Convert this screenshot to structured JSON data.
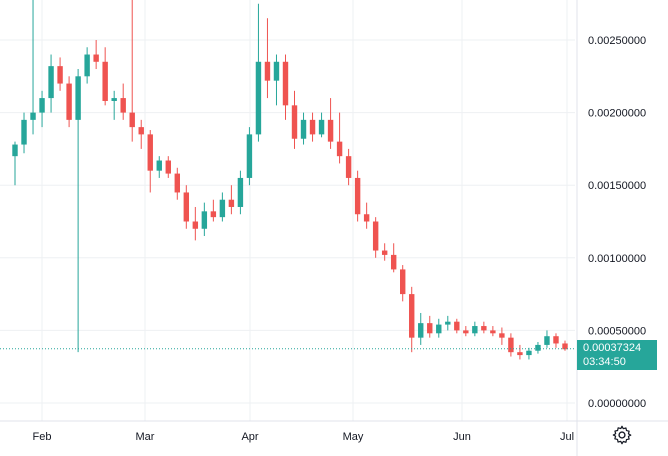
{
  "chart_data": {
    "type": "candlestick",
    "y_ticks": [
      "0.00250000",
      "0.00200000",
      "0.00150000",
      "0.00100000",
      "0.00050000",
      "0.00000000"
    ],
    "y_tick_values": [
      0.0025,
      0.002,
      0.0015,
      0.001,
      0.0005,
      0.0
    ],
    "x_ticks": [
      "Feb",
      "Mar",
      "Apr",
      "May",
      "Jun",
      "Jul"
    ],
    "ylim": [
      -5e-05,
      0.0028
    ],
    "grid": true,
    "last_price": "0.00037324",
    "countdown": "03:34:50",
    "last_price_value": 0.00037324,
    "candles": [
      {
        "o": 0.0017,
        "h": 0.0018,
        "l": 0.0015,
        "c": 0.00178
      },
      {
        "o": 0.00178,
        "h": 0.002,
        "l": 0.00172,
        "c": 0.00195
      },
      {
        "o": 0.00195,
        "h": 0.0028,
        "l": 0.00185,
        "c": 0.002
      },
      {
        "o": 0.002,
        "h": 0.00215,
        "l": 0.0019,
        "c": 0.0021
      },
      {
        "o": 0.0021,
        "h": 0.0024,
        "l": 0.002,
        "c": 0.00232
      },
      {
        "o": 0.00232,
        "h": 0.00238,
        "l": 0.00215,
        "c": 0.0022
      },
      {
        "o": 0.0022,
        "h": 0.00225,
        "l": 0.0019,
        "c": 0.00195
      },
      {
        "o": 0.00195,
        "h": 0.0023,
        "l": 0.00035,
        "c": 0.00225
      },
      {
        "o": 0.00225,
        "h": 0.00245,
        "l": 0.0022,
        "c": 0.0024
      },
      {
        "o": 0.0024,
        "h": 0.0025,
        "l": 0.0023,
        "c": 0.00235
      },
      {
        "o": 0.00235,
        "h": 0.00245,
        "l": 0.00205,
        "c": 0.00208
      },
      {
        "o": 0.00208,
        "h": 0.00215,
        "l": 0.00195,
        "c": 0.0021
      },
      {
        "o": 0.0021,
        "h": 0.0022,
        "l": 0.00195,
        "c": 0.002
      },
      {
        "o": 0.002,
        "h": 0.0028,
        "l": 0.0018,
        "c": 0.0019
      },
      {
        "o": 0.0019,
        "h": 0.00195,
        "l": 0.00175,
        "c": 0.00185
      },
      {
        "o": 0.00185,
        "h": 0.00188,
        "l": 0.00145,
        "c": 0.0016
      },
      {
        "o": 0.0016,
        "h": 0.0017,
        "l": 0.00155,
        "c": 0.00167
      },
      {
        "o": 0.00167,
        "h": 0.0017,
        "l": 0.00155,
        "c": 0.00158
      },
      {
        "o": 0.00158,
        "h": 0.00162,
        "l": 0.0014,
        "c": 0.00145
      },
      {
        "o": 0.00145,
        "h": 0.0015,
        "l": 0.0012,
        "c": 0.00125
      },
      {
        "o": 0.00125,
        "h": 0.00135,
        "l": 0.00112,
        "c": 0.0012
      },
      {
        "o": 0.0012,
        "h": 0.00138,
        "l": 0.00115,
        "c": 0.00132
      },
      {
        "o": 0.00132,
        "h": 0.0014,
        "l": 0.00125,
        "c": 0.00128
      },
      {
        "o": 0.00128,
        "h": 0.00145,
        "l": 0.00125,
        "c": 0.0014
      },
      {
        "o": 0.0014,
        "h": 0.0015,
        "l": 0.0013,
        "c": 0.00135
      },
      {
        "o": 0.00135,
        "h": 0.0016,
        "l": 0.0013,
        "c": 0.00155
      },
      {
        "o": 0.00155,
        "h": 0.0019,
        "l": 0.0015,
        "c": 0.00185
      },
      {
        "o": 0.00185,
        "h": 0.00275,
        "l": 0.0018,
        "c": 0.00235
      },
      {
        "o": 0.00235,
        "h": 0.00265,
        "l": 0.0021,
        "c": 0.00222
      },
      {
        "o": 0.00222,
        "h": 0.0024,
        "l": 0.00205,
        "c": 0.00235
      },
      {
        "o": 0.00235,
        "h": 0.0024,
        "l": 0.00195,
        "c": 0.00205
      },
      {
        "o": 0.00205,
        "h": 0.00215,
        "l": 0.00175,
        "c": 0.00182
      },
      {
        "o": 0.00182,
        "h": 0.002,
        "l": 0.00178,
        "c": 0.00195
      },
      {
        "o": 0.00195,
        "h": 0.002,
        "l": 0.0018,
        "c": 0.00185
      },
      {
        "o": 0.00185,
        "h": 0.002,
        "l": 0.00183,
        "c": 0.00195
      },
      {
        "o": 0.00195,
        "h": 0.0021,
        "l": 0.00175,
        "c": 0.0018
      },
      {
        "o": 0.0018,
        "h": 0.002,
        "l": 0.00165,
        "c": 0.0017
      },
      {
        "o": 0.0017,
        "h": 0.00175,
        "l": 0.0015,
        "c": 0.00155
      },
      {
        "o": 0.00155,
        "h": 0.0016,
        "l": 0.00125,
        "c": 0.0013
      },
      {
        "o": 0.0013,
        "h": 0.00138,
        "l": 0.0012,
        "c": 0.00125
      },
      {
        "o": 0.00125,
        "h": 0.00128,
        "l": 0.001,
        "c": 0.00105
      },
      {
        "o": 0.00105,
        "h": 0.0011,
        "l": 0.00098,
        "c": 0.00102
      },
      {
        "o": 0.00102,
        "h": 0.0011,
        "l": 0.0009,
        "c": 0.00092
      },
      {
        "o": 0.00092,
        "h": 0.00095,
        "l": 0.0007,
        "c": 0.00075
      },
      {
        "o": 0.00075,
        "h": 0.0008,
        "l": 0.00035,
        "c": 0.00045
      },
      {
        "o": 0.00045,
        "h": 0.00062,
        "l": 0.0004,
        "c": 0.00055
      },
      {
        "o": 0.00055,
        "h": 0.0006,
        "l": 0.00045,
        "c": 0.00048
      },
      {
        "o": 0.00048,
        "h": 0.00058,
        "l": 0.00045,
        "c": 0.00054
      },
      {
        "o": 0.00054,
        "h": 0.0006,
        "l": 0.0005,
        "c": 0.00056
      },
      {
        "o": 0.00056,
        "h": 0.00058,
        "l": 0.00048,
        "c": 0.0005
      },
      {
        "o": 0.0005,
        "h": 0.00053,
        "l": 0.00046,
        "c": 0.00048
      },
      {
        "o": 0.00048,
        "h": 0.00056,
        "l": 0.00046,
        "c": 0.00053
      },
      {
        "o": 0.00053,
        "h": 0.00056,
        "l": 0.00048,
        "c": 0.0005
      },
      {
        "o": 0.0005,
        "h": 0.00053,
        "l": 0.00046,
        "c": 0.00048
      },
      {
        "o": 0.00048,
        "h": 0.00052,
        "l": 0.0004,
        "c": 0.00045
      },
      {
        "o": 0.00045,
        "h": 0.00048,
        "l": 0.00032,
        "c": 0.00035
      },
      {
        "o": 0.00035,
        "h": 0.0004,
        "l": 0.0003,
        "c": 0.00033
      },
      {
        "o": 0.00033,
        "h": 0.00038,
        "l": 0.0003,
        "c": 0.00036
      },
      {
        "o": 0.00036,
        "h": 0.00042,
        "l": 0.00034,
        "c": 0.0004
      },
      {
        "o": 0.0004,
        "h": 0.0005,
        "l": 0.00038,
        "c": 0.00046
      },
      {
        "o": 0.00046,
        "h": 0.00048,
        "l": 0.00038,
        "c": 0.00041
      },
      {
        "o": 0.00041,
        "h": 0.00043,
        "l": 0.00036,
        "c": 0.00037
      }
    ]
  },
  "colors": {
    "up": "#26a69a",
    "down": "#ef5350",
    "grid": "#eef0f3",
    "text": "#131722",
    "price_tag": "#26a69a"
  },
  "icons": {
    "settings": "gear-icon"
  }
}
